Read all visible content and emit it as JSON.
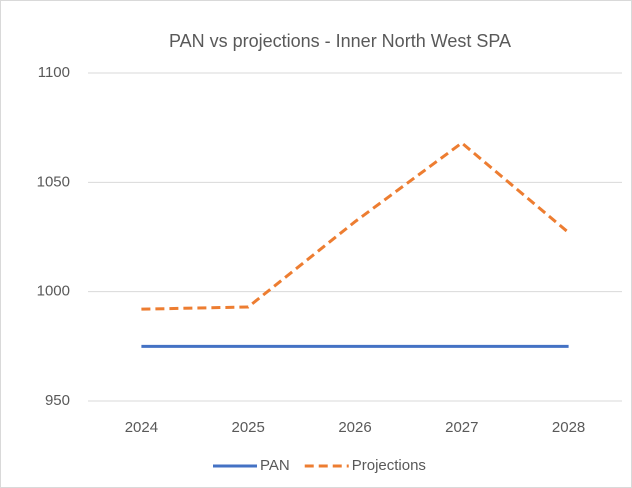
{
  "chart_data": {
    "type": "line",
    "title": "PAN vs projections - Inner North West SPA",
    "categories": [
      "2024",
      "2025",
      "2026",
      "2027",
      "2028"
    ],
    "series": [
      {
        "name": "PAN",
        "color": "#4472c4",
        "dashed": false,
        "values": [
          975,
          975,
          975,
          975,
          975
        ]
      },
      {
        "name": "Projections",
        "color": "#ed7d31",
        "dashed": true,
        "values": [
          992,
          993,
          1032,
          1068,
          1027
        ]
      }
    ],
    "ylim": [
      950,
      1100
    ],
    "yticks": [
      950,
      1000,
      1050,
      1100
    ],
    "grid": true,
    "legend": "bottom"
  }
}
